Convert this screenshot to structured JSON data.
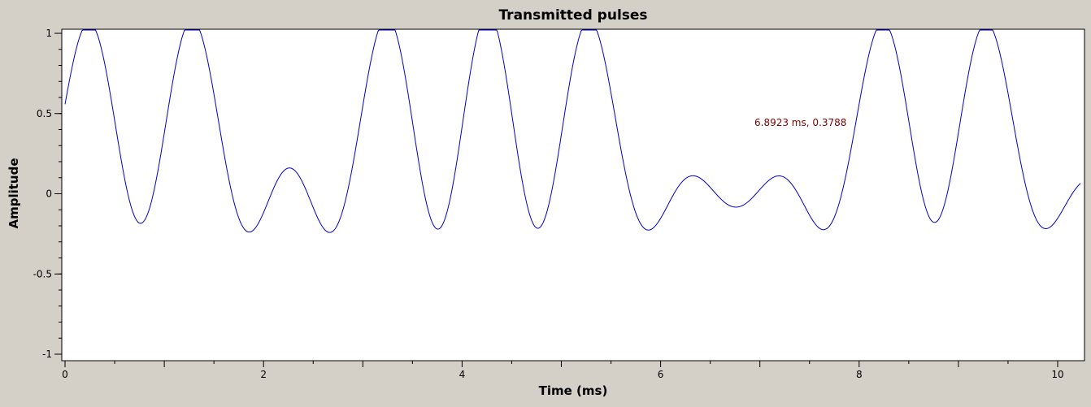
{
  "chart_data": {
    "type": "line",
    "title": "Transmitted pulses",
    "xlabel": "Time (ms)",
    "ylabel": "Amplitude",
    "xlim": [
      0,
      10.23
    ],
    "ylim": [
      -1,
      1
    ],
    "xticks": [
      0,
      2,
      4,
      6,
      8,
      10
    ],
    "yticks": [
      1,
      0.5,
      0,
      -0.5,
      -1
    ],
    "ytick_labels": [
      "1",
      "0.5",
      "0",
      "-0.5",
      "-1"
    ],
    "grid": false,
    "legend": "none",
    "pulse_period_ms": 1.0,
    "pulse_peak_offset_ms": 0.26,
    "symbols": [
      1,
      1,
      0,
      1,
      1,
      1,
      0,
      0,
      1,
      1,
      0
    ],
    "series": [
      {
        "color": "#0000cc",
        "x_start": 0,
        "x_end": 10.23
      }
    ],
    "readout": "6.8923 ms, 0.3788"
  }
}
